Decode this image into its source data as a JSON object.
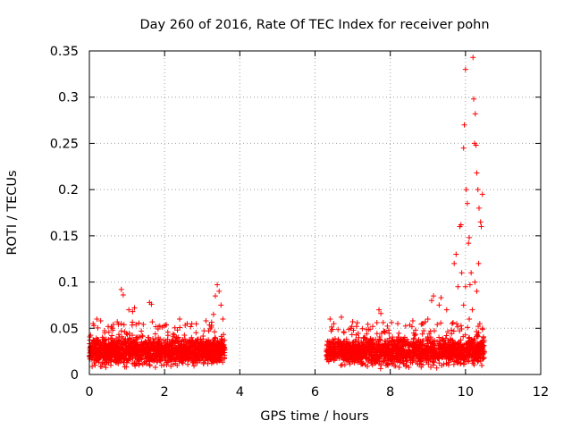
{
  "chart_data": {
    "type": "scatter",
    "title": "Day 260 of 2016, Rate Of TEC Index for receiver pohn",
    "xlabel": "GPS time / hours",
    "ylabel": "ROTI / TECUs",
    "xlim": [
      0,
      12
    ],
    "ylim": [
      0,
      0.35
    ],
    "xticks": [
      0,
      2,
      4,
      6,
      8,
      10,
      12
    ],
    "yticks": [
      0,
      0.05,
      0.1,
      0.15,
      0.2,
      0.25,
      0.3,
      0.35
    ],
    "xtick_labels": [
      "0",
      "2",
      "4",
      "6",
      "8",
      "10",
      "12"
    ],
    "ytick_labels": [
      "0",
      "0.05",
      "0.1",
      "0.15",
      "0.2",
      "0.25",
      "0.3",
      "0.35"
    ],
    "grid": true,
    "marker": "+",
    "color": "#ff0000",
    "data_gap_hours": [
      3.6,
      6.3
    ],
    "dense_segments": [
      {
        "x_start": 0.0,
        "x_end": 3.6,
        "y_min": 0.005,
        "y_max": 0.045,
        "y_typical": 0.025
      },
      {
        "x_start": 6.3,
        "x_end": 10.5,
        "y_min": 0.005,
        "y_max": 0.045,
        "y_typical": 0.025
      }
    ],
    "notable_points": [
      {
        "x": 0.1,
        "y": 0.055
      },
      {
        "x": 0.2,
        "y": 0.06
      },
      {
        "x": 0.3,
        "y": 0.058
      },
      {
        "x": 0.5,
        "y": 0.052
      },
      {
        "x": 0.85,
        "y": 0.092
      },
      {
        "x": 0.9,
        "y": 0.086
      },
      {
        "x": 1.05,
        "y": 0.07
      },
      {
        "x": 1.15,
        "y": 0.068
      },
      {
        "x": 1.2,
        "y": 0.072
      },
      {
        "x": 1.6,
        "y": 0.078
      },
      {
        "x": 1.65,
        "y": 0.076
      },
      {
        "x": 2.4,
        "y": 0.06
      },
      {
        "x": 2.6,
        "y": 0.055
      },
      {
        "x": 3.1,
        "y": 0.058
      },
      {
        "x": 3.3,
        "y": 0.065
      },
      {
        "x": 3.35,
        "y": 0.085
      },
      {
        "x": 3.4,
        "y": 0.097
      },
      {
        "x": 3.45,
        "y": 0.09
      },
      {
        "x": 3.5,
        "y": 0.075
      },
      {
        "x": 3.55,
        "y": 0.06
      },
      {
        "x": 6.4,
        "y": 0.06
      },
      {
        "x": 6.5,
        "y": 0.055
      },
      {
        "x": 6.7,
        "y": 0.062
      },
      {
        "x": 7.0,
        "y": 0.057
      },
      {
        "x": 7.1,
        "y": 0.052
      },
      {
        "x": 7.7,
        "y": 0.07
      },
      {
        "x": 7.75,
        "y": 0.066
      },
      {
        "x": 8.2,
        "y": 0.055
      },
      {
        "x": 8.6,
        "y": 0.058
      },
      {
        "x": 9.0,
        "y": 0.06
      },
      {
        "x": 9.1,
        "y": 0.08
      },
      {
        "x": 9.15,
        "y": 0.085
      },
      {
        "x": 9.3,
        "y": 0.075
      },
      {
        "x": 9.35,
        "y": 0.083
      },
      {
        "x": 9.5,
        "y": 0.07
      },
      {
        "x": 9.7,
        "y": 0.12
      },
      {
        "x": 9.75,
        "y": 0.13
      },
      {
        "x": 9.8,
        "y": 0.095
      },
      {
        "x": 9.85,
        "y": 0.16
      },
      {
        "x": 9.88,
        "y": 0.162
      },
      {
        "x": 9.9,
        "y": 0.11
      },
      {
        "x": 9.95,
        "y": 0.245
      },
      {
        "x": 9.97,
        "y": 0.27
      },
      {
        "x": 10.0,
        "y": 0.33
      },
      {
        "x": 10.02,
        "y": 0.2
      },
      {
        "x": 10.05,
        "y": 0.185
      },
      {
        "x": 10.08,
        "y": 0.142
      },
      {
        "x": 10.1,
        "y": 0.148
      },
      {
        "x": 10.12,
        "y": 0.097
      },
      {
        "x": 10.15,
        "y": 0.11
      },
      {
        "x": 10.18,
        "y": 0.07
      },
      {
        "x": 10.2,
        "y": 0.343
      },
      {
        "x": 10.22,
        "y": 0.298
      },
      {
        "x": 10.24,
        "y": 0.25
      },
      {
        "x": 10.26,
        "y": 0.282
      },
      {
        "x": 10.28,
        "y": 0.248
      },
      {
        "x": 10.3,
        "y": 0.218
      },
      {
        "x": 10.33,
        "y": 0.2
      },
      {
        "x": 10.36,
        "y": 0.18
      },
      {
        "x": 10.4,
        "y": 0.165
      },
      {
        "x": 10.42,
        "y": 0.16
      },
      {
        "x": 10.45,
        "y": 0.195
      },
      {
        "x": 10.3,
        "y": 0.09
      },
      {
        "x": 10.35,
        "y": 0.12
      },
      {
        "x": 10.25,
        "y": 0.1
      },
      {
        "x": 10.0,
        "y": 0.095
      },
      {
        "x": 9.95,
        "y": 0.075
      },
      {
        "x": 10.1,
        "y": 0.06
      },
      {
        "x": 10.38,
        "y": 0.055
      },
      {
        "x": 10.45,
        "y": 0.05
      }
    ]
  }
}
